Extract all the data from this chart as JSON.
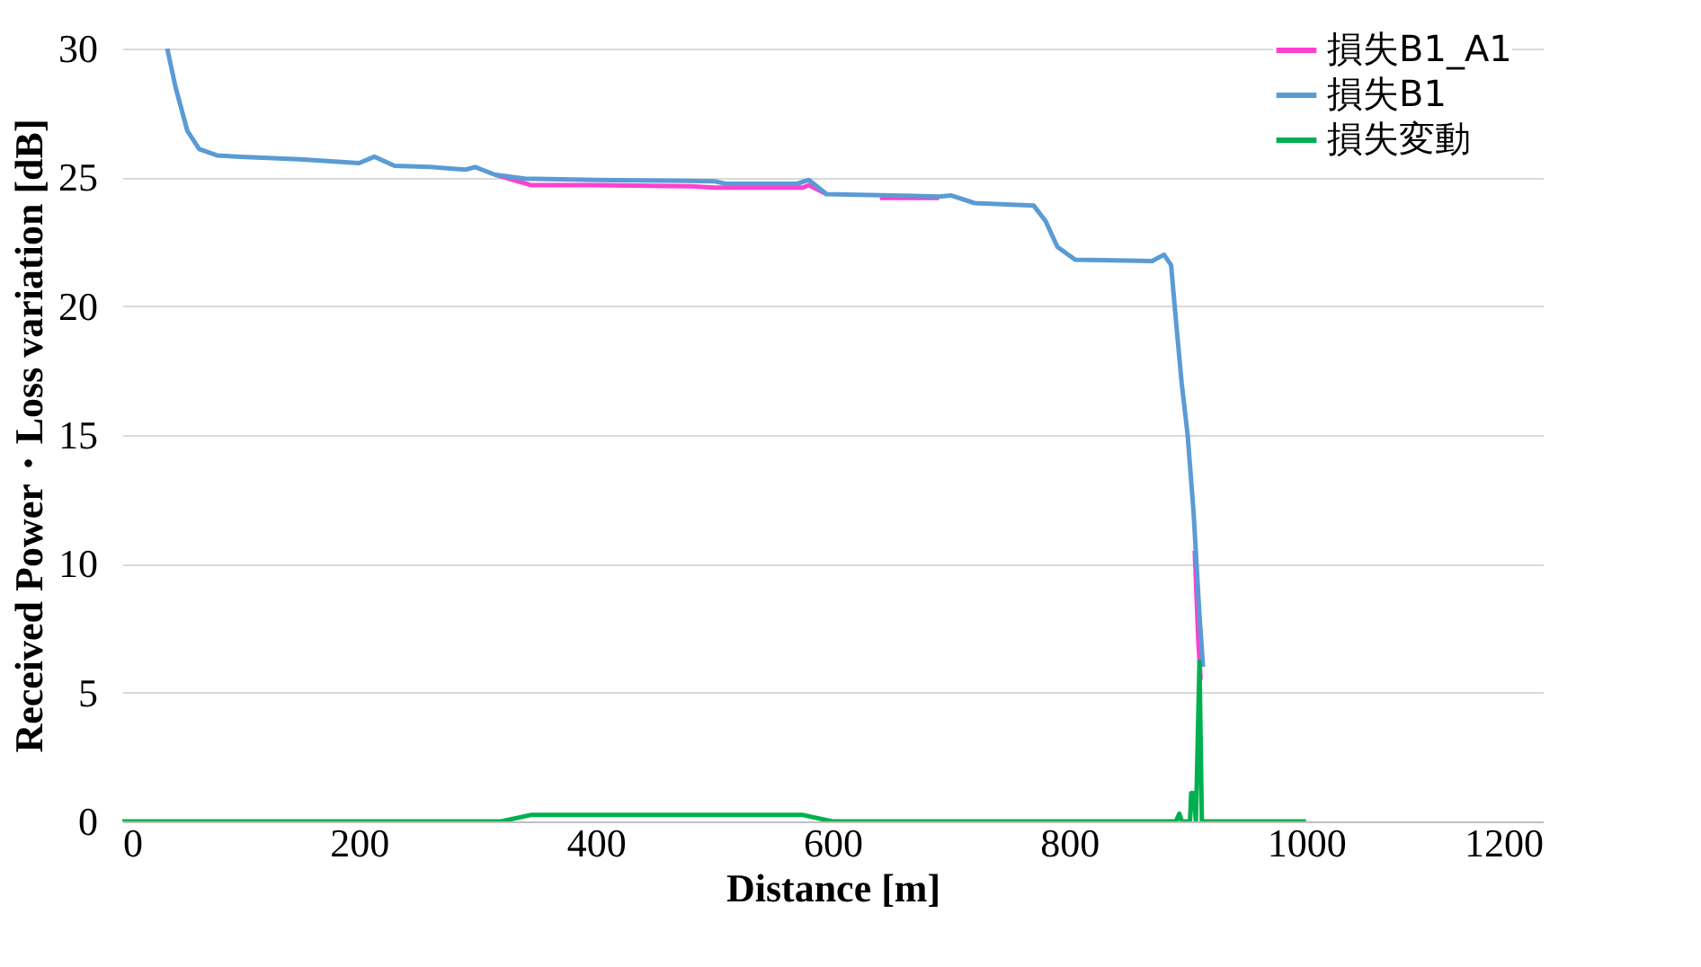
{
  "chart_data": {
    "type": "line",
    "xlabel": "Distance [m]",
    "ylabel": "Received Power・Loss variation [dB]",
    "xlim": [
      0,
      1200
    ],
    "xticks": [
      0,
      200,
      400,
      600,
      800,
      1000,
      1200
    ],
    "ylim": [
      0,
      30
    ],
    "yticks": [
      0,
      5,
      10,
      15,
      20,
      25,
      30
    ],
    "grid": "y",
    "legend": "top right",
    "line_style": "solid",
    "marker": "none",
    "series": [
      {
        "name": "損失B1_A1",
        "color": "#ff40d0",
        "x": [
          315,
          330,
          345,
          400,
          480,
          500,
          575,
          580,
          595,
          620,
          640,
          650,
          690,
          700,
          906,
          909,
          911
        ],
        "values": [
          25.1,
          24.9,
          24.7,
          24.7,
          24.65,
          24.6,
          24.6,
          24.7,
          24.35,
          null,
          24.2,
          24.2,
          24.2,
          null,
          10.5,
          7,
          5.5
        ]
      },
      {
        "name": "損失B1",
        "color": "#5b9bd5",
        "x": [
          38,
          45,
          55,
          65,
          80,
          100,
          150,
          200,
          213,
          230,
          260,
          290,
          298,
          315,
          340,
          400,
          500,
          510,
          570,
          580,
          595,
          650,
          690,
          700,
          720,
          770,
          780,
          790,
          805,
          870,
          880,
          886,
          890,
          895,
          900,
          905,
          910,
          913
        ],
        "values": [
          30,
          28.5,
          26.8,
          26.1,
          25.85,
          25.8,
          25.7,
          25.55,
          25.8,
          25.45,
          25.4,
          25.3,
          25.4,
          25.1,
          24.95,
          24.9,
          24.85,
          24.75,
          24.75,
          24.9,
          24.35,
          24.3,
          24.25,
          24.3,
          24.0,
          23.9,
          23.3,
          22.3,
          21.8,
          21.75,
          22.0,
          21.6,
          19.5,
          17,
          15,
          12,
          8,
          6
        ]
      },
      {
        "name": "損失変動",
        "color": "#00b050",
        "x": [
          0,
          320,
          345,
          575,
          600,
          890,
          893,
          895,
          897,
          902,
          903,
          905,
          907,
          910,
          912,
          1000
        ],
        "values": [
          0,
          0,
          0.25,
          0.25,
          0,
          0,
          0.3,
          0,
          0,
          0,
          1.1,
          1.1,
          0,
          6.2,
          0,
          0
        ]
      }
    ]
  }
}
